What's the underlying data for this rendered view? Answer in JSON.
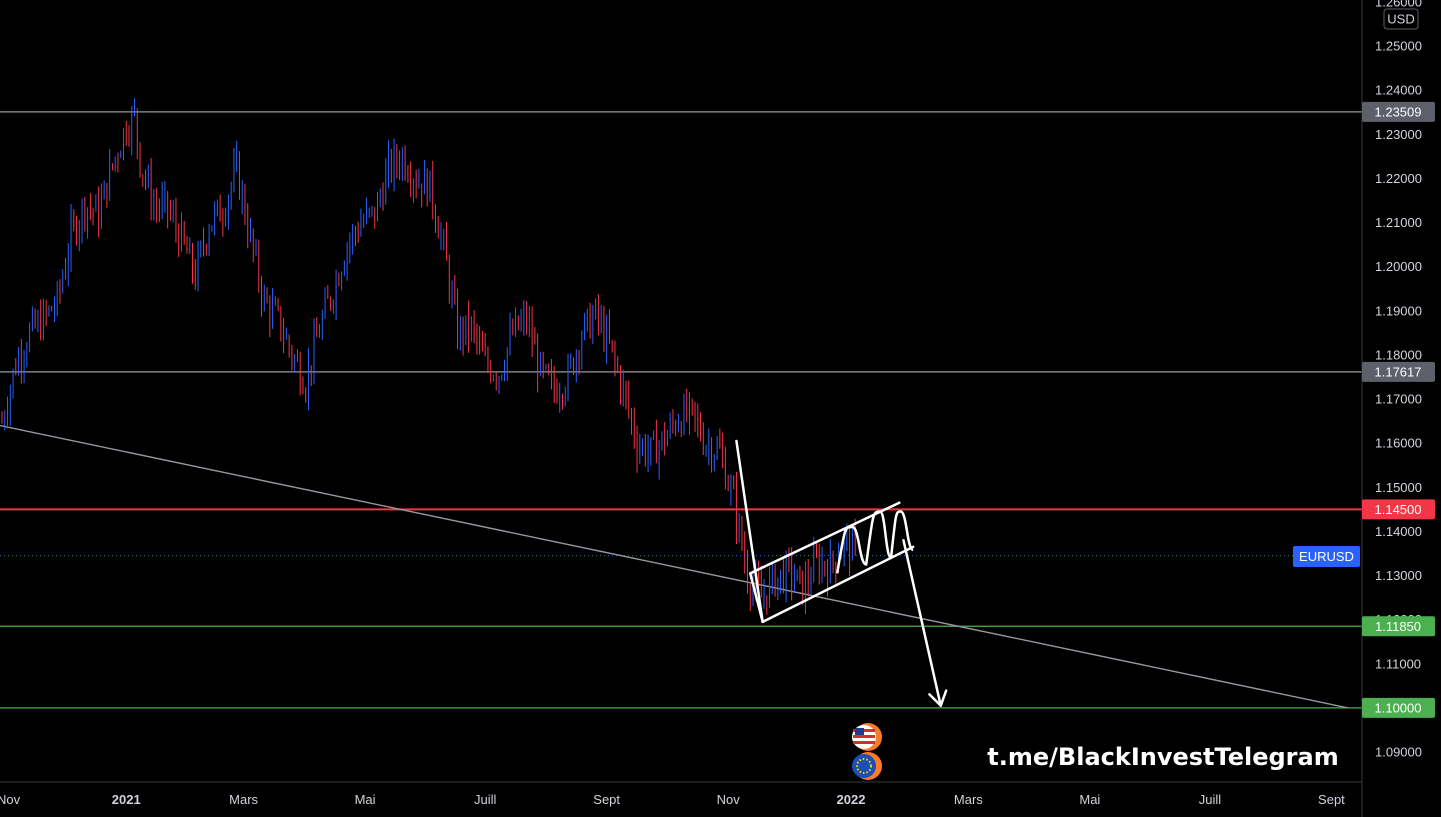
{
  "chart_data": {
    "type": "candlestick",
    "symbol": "EURUSD",
    "currency": "USD",
    "ylim": [
      1.082,
      1.262
    ],
    "price_ticks": [
      "1.26000",
      "1.25000",
      "1.24000",
      "1.23000",
      "1.22000",
      "1.21000",
      "1.20000",
      "1.19000",
      "1.18000",
      "1.17000",
      "1.16000",
      "1.15000",
      "1.14000",
      "1.13000",
      "1.12000",
      "1.11000",
      "1.10000",
      "1.09000"
    ],
    "time_labels": [
      {
        "label": "Nov",
        "week": 0,
        "bold": false
      },
      {
        "label": "2021",
        "week": 9,
        "bold": true
      },
      {
        "label": "Mars",
        "week": 17.5,
        "bold": false
      },
      {
        "label": "Mai",
        "week": 26.3,
        "bold": false
      },
      {
        "label": "Juill",
        "week": 35,
        "bold": false
      },
      {
        "label": "Sept",
        "week": 43.8,
        "bold": false
      },
      {
        "label": "Nov",
        "week": 52.6,
        "bold": false
      },
      {
        "label": "2022",
        "week": 61.5,
        "bold": true
      },
      {
        "label": "Mars",
        "week": 70,
        "bold": false
      },
      {
        "label": "Mai",
        "week": 78.8,
        "bold": false
      },
      {
        "label": "Juill",
        "week": 87.5,
        "bold": false
      },
      {
        "label": "Sept",
        "week": 96.3,
        "bold": false
      }
    ],
    "key_levels": [
      {
        "price": 1.23509,
        "label": "1.23509",
        "color": "#9598a1",
        "tag_color": "#5d606b"
      },
      {
        "price": 1.17617,
        "label": "1.17617",
        "color": "#9598a1",
        "tag_color": "#5d606b"
      },
      {
        "price": 1.145,
        "label": "1.14500",
        "color": "#f23645",
        "tag_color": "#f23645"
      },
      {
        "price": 1.1185,
        "label": "1.11850",
        "color": "#4caf50",
        "tag_color": "#4caf50"
      },
      {
        "price": 1.1,
        "label": "1.10000",
        "color": "#4caf50",
        "tag_color": "#4caf50"
      }
    ],
    "last_price": 1.1345,
    "trendline": {
      "start": [
        0,
        1.164
      ],
      "end": [
        97.5,
        1.1
      ]
    },
    "series_path": [
      [
        0,
        1.165
      ],
      [
        1,
        1.178
      ],
      [
        2,
        1.185
      ],
      [
        3,
        1.188
      ],
      [
        4,
        1.192
      ],
      [
        5,
        1.207
      ],
      [
        6,
        1.214
      ],
      [
        7,
        1.212
      ],
      [
        8,
        1.223
      ],
      [
        9,
        1.232
      ],
      [
        9.6,
        1.234
      ],
      [
        10,
        1.224
      ],
      [
        11,
        1.214
      ],
      [
        12,
        1.213
      ],
      [
        13,
        1.206
      ],
      [
        14,
        1.198
      ],
      [
        15,
        1.21
      ],
      [
        16,
        1.213
      ],
      [
        17,
        1.222
      ],
      [
        18,
        1.206
      ],
      [
        19,
        1.192
      ],
      [
        20,
        1.188
      ],
      [
        21,
        1.18
      ],
      [
        22,
        1.174
      ],
      [
        23,
        1.186
      ],
      [
        24,
        1.195
      ],
      [
        25,
        1.205
      ],
      [
        26,
        1.21
      ],
      [
        27,
        1.212
      ],
      [
        28,
        1.222
      ],
      [
        29,
        1.225
      ],
      [
        30,
        1.22
      ],
      [
        31,
        1.218
      ],
      [
        32,
        1.204
      ],
      [
        33,
        1.185
      ],
      [
        34,
        1.186
      ],
      [
        35,
        1.178
      ],
      [
        36,
        1.176
      ],
      [
        37,
        1.185
      ],
      [
        38,
        1.188
      ],
      [
        39,
        1.176
      ],
      [
        40,
        1.172
      ],
      [
        41,
        1.175
      ],
      [
        42,
        1.185
      ],
      [
        43,
        1.189
      ],
      [
        44,
        1.182
      ],
      [
        45,
        1.172
      ],
      [
        46,
        1.16
      ],
      [
        47,
        1.158
      ],
      [
        48,
        1.161
      ],
      [
        49,
        1.166
      ],
      [
        50,
        1.166
      ],
      [
        51,
        1.16
      ],
      [
        52,
        1.158
      ],
      [
        53,
        1.147
      ],
      [
        54,
        1.13
      ],
      [
        55,
        1.125
      ],
      [
        56,
        1.129
      ],
      [
        57,
        1.131
      ],
      [
        58,
        1.127
      ],
      [
        59,
        1.133
      ],
      [
        60,
        1.132
      ],
      [
        61,
        1.138
      ],
      [
        62,
        1.134
      ]
    ],
    "drawings": {
      "drop_line": [
        [
          53.2,
          1.1605
        ],
        [
          55.1,
          1.1195
        ]
      ],
      "channel_lower": [
        [
          55.1,
          1.1195
        ],
        [
          66.0,
          1.1365
        ]
      ],
      "channel_upper": [
        [
          54.2,
          1.1305
        ],
        [
          65.0,
          1.1465
        ]
      ],
      "channel_left": [
        [
          54.2,
          1.1305
        ],
        [
          55.1,
          1.1195
        ]
      ],
      "waves": [
        [
          60.5,
          1.1305
        ],
        [
          61.6,
          1.141
        ],
        [
          62.6,
          1.1325
        ],
        [
          63.6,
          1.1445
        ],
        [
          64.4,
          1.134
        ],
        [
          65.1,
          1.1445
        ],
        [
          66.0,
          1.1358
        ]
      ],
      "down_arrow": [
        [
          65.3,
          1.138
        ],
        [
          68.0,
          1.1005
        ]
      ]
    }
  },
  "price_axis": {
    "currency_label": "USD"
  },
  "symbol_tag": {
    "label": "EURUSD",
    "color": "#2962ff"
  },
  "watermark": {
    "text": "t.me/BlackInvestTelegram"
  },
  "colors": {
    "up": "#2962ff",
    "down": "#f23645",
    "grid": "#2a2e39",
    "background": "#000000"
  }
}
